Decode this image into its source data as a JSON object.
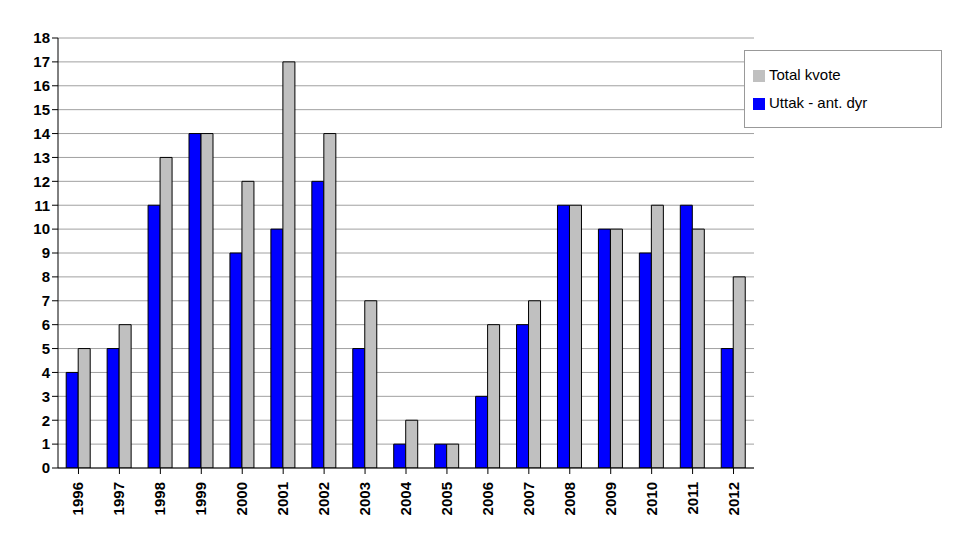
{
  "chart_data": {
    "type": "bar",
    "categories": [
      "1996",
      "1997",
      "1998",
      "1999",
      "2000",
      "2001",
      "2002",
      "2003",
      "2004",
      "2005",
      "2006",
      "2007",
      "2008",
      "2009",
      "2010",
      "2011",
      "2012"
    ],
    "series": [
      {
        "name": "Uttak - ant. dyr",
        "color": "#0000ff",
        "values": [
          4,
          5,
          11,
          14,
          9,
          10,
          12,
          5,
          1,
          1,
          3,
          6,
          11,
          10,
          9,
          11,
          5
        ]
      },
      {
        "name": "Total kvote",
        "color": "#c0c0c0",
        "values": [
          5,
          6,
          13,
          14,
          12,
          17,
          14,
          7,
          2,
          1,
          6,
          7,
          11,
          10,
          11,
          10,
          8
        ]
      }
    ],
    "ylim": [
      0,
      18
    ],
    "yticks": [
      0,
      1,
      2,
      3,
      4,
      5,
      6,
      7,
      8,
      9,
      10,
      11,
      12,
      13,
      14,
      15,
      16,
      17,
      18
    ],
    "grid": true,
    "legend": "top right"
  }
}
